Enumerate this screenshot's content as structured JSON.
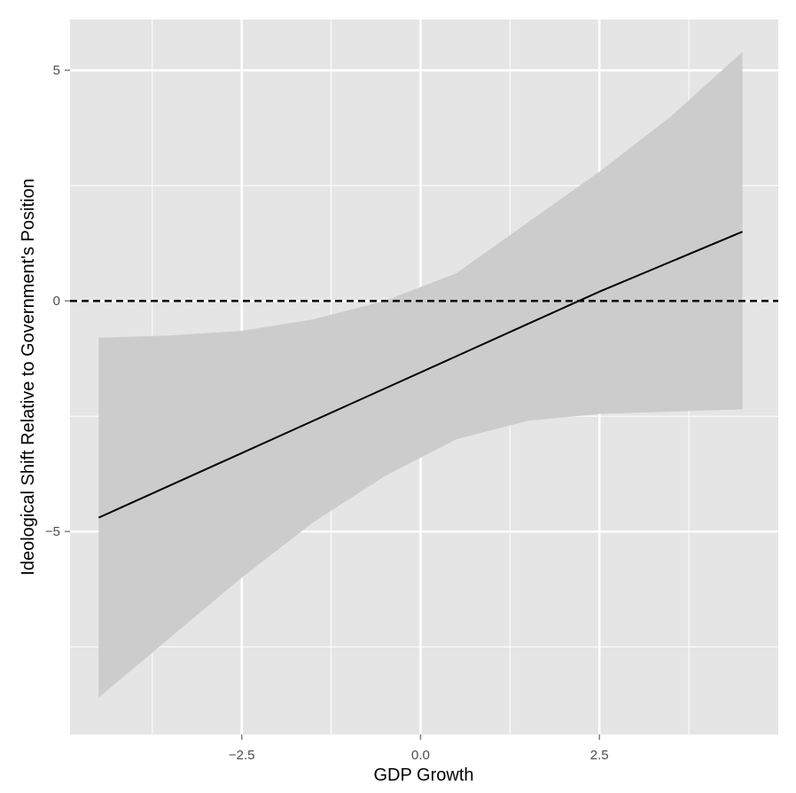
{
  "chart_data": {
    "type": "line",
    "title": "",
    "xlabel": "GDP Growth",
    "ylabel": "Ideological Shift Relative to Government's Position",
    "xlim": [
      -4.9,
      5.0
    ],
    "ylim": [
      -9.4,
      6.1
    ],
    "x_ticks": [
      -2.5,
      0.0,
      2.5
    ],
    "x_tick_labels": [
      "−2.5",
      "0.0",
      "2.5"
    ],
    "y_ticks": [
      -5,
      0,
      5
    ],
    "y_tick_labels": [
      "−5",
      "0",
      "5"
    ],
    "grid": true,
    "background_color": "#e5e5e5",
    "grid_color": "#ffffff",
    "ribbon_color": "#cccccc",
    "line_color": "#000000",
    "reference_line": {
      "y": 0,
      "style": "dashed",
      "color": "#000000"
    },
    "series": [
      {
        "x": [
          -4.5,
          -3.5,
          -2.5,
          -1.5,
          -0.5,
          0.5,
          1.5,
          2.5,
          3.5,
          4.5
        ],
        "y": [
          -4.7,
          -4.0,
          -3.3,
          -2.6,
          -1.9,
          -1.2,
          -0.5,
          0.2,
          0.85,
          1.5
        ],
        "lower": [
          -8.6,
          -7.3,
          -6.0,
          -4.8,
          -3.8,
          -3.0,
          -2.6,
          -2.45,
          -2.4,
          -2.35
        ],
        "upper": [
          -0.8,
          -0.75,
          -0.65,
          -0.4,
          0.0,
          0.6,
          1.7,
          2.8,
          4.0,
          5.4
        ]
      }
    ]
  }
}
